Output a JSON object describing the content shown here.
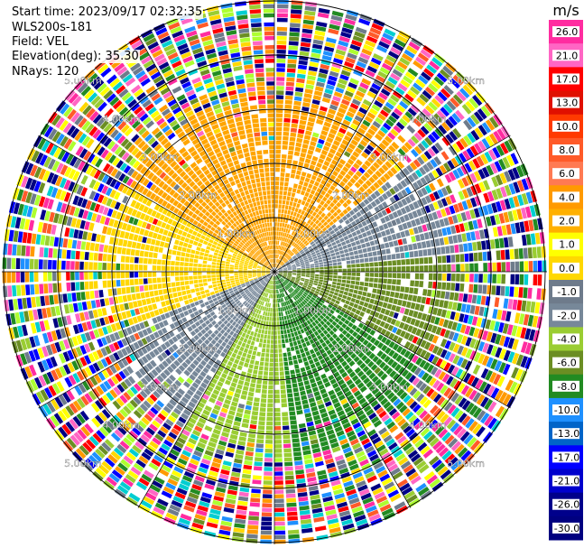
{
  "header": {
    "start_time": "Start time: 2023/09/17 02:32:35",
    "instrument": "WLS200s-181",
    "field": "Field: VEL",
    "elevation": "Elevation(deg): 35.30",
    "nrays": "NRays: 120"
  },
  "chart_data": {
    "type": "heatmap",
    "projection": "polar PPI",
    "rays": 120,
    "range_rings_km": [
      1,
      2,
      3,
      4,
      5
    ],
    "ring_labels": [
      "1.00km",
      "2.00km",
      "3.00km",
      "4.00km",
      "5.00km"
    ],
    "colorbar": {
      "unit": "m/s",
      "ticks": [
        "26.0",
        "21.0",
        "17.0",
        "13.0",
        "10.0",
        "8.0",
        "6.0",
        "4.0",
        "2.0",
        "1.0",
        "0.0",
        "-1.0",
        "-2.0",
        "-4.0",
        "-6.0",
        "-8.0",
        "-10.0",
        "-13.0",
        "-17.0",
        "-21.0",
        "-26.0",
        "-30.0"
      ],
      "colors": [
        "#ff2ca0",
        "#ff66c4",
        "#ff0000",
        "#e01000",
        "#ff3a00",
        "#ff5a28",
        "#ff7a52",
        "#ff9a00",
        "#ffb000",
        "#ffff00",
        "#ffd800",
        "#6e7b8b",
        "#778899",
        "#9acd32",
        "#6b8e23",
        "#228b22",
        "#1e90ff",
        "#0064c8",
        "#0000ff",
        "#0000cd",
        "#00008b",
        "#000080"
      ]
    }
  }
}
